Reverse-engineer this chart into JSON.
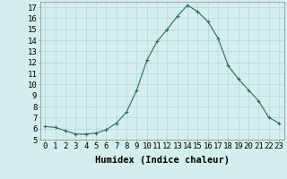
{
  "x": [
    0,
    1,
    2,
    3,
    4,
    5,
    6,
    7,
    8,
    9,
    10,
    11,
    12,
    13,
    14,
    15,
    16,
    17,
    18,
    19,
    20,
    21,
    22,
    23
  ],
  "y": [
    6.2,
    6.1,
    5.8,
    5.5,
    5.5,
    5.6,
    5.9,
    6.5,
    7.5,
    9.5,
    12.2,
    13.9,
    15.0,
    16.2,
    17.2,
    16.6,
    15.7,
    14.2,
    11.7,
    10.5,
    9.5,
    8.5,
    7.0,
    6.5
  ],
  "line_color": "#2e6b5e",
  "marker": "+",
  "marker_size": 3,
  "bg_color": "#d4eeed",
  "grid_color": "#b2d8d4",
  "xlabel": "Humidex (Indice chaleur)",
  "ylim": [
    5,
    17.5
  ],
  "xlim": [
    -0.5,
    23.5
  ],
  "yticks": [
    5,
    6,
    7,
    8,
    9,
    10,
    11,
    12,
    13,
    14,
    15,
    16,
    17
  ],
  "xticks": [
    0,
    1,
    2,
    3,
    4,
    5,
    6,
    7,
    8,
    9,
    10,
    11,
    12,
    13,
    14,
    15,
    16,
    17,
    18,
    19,
    20,
    21,
    22,
    23
  ],
  "xtick_labels": [
    "0",
    "1",
    "2",
    "3",
    "4",
    "5",
    "6",
    "7",
    "8",
    "9",
    "10",
    "11",
    "12",
    "13",
    "14",
    "15",
    "16",
    "17",
    "18",
    "19",
    "20",
    "21",
    "22",
    "23"
  ],
  "tick_fontsize": 6.5,
  "xlabel_fontsize": 7.5
}
